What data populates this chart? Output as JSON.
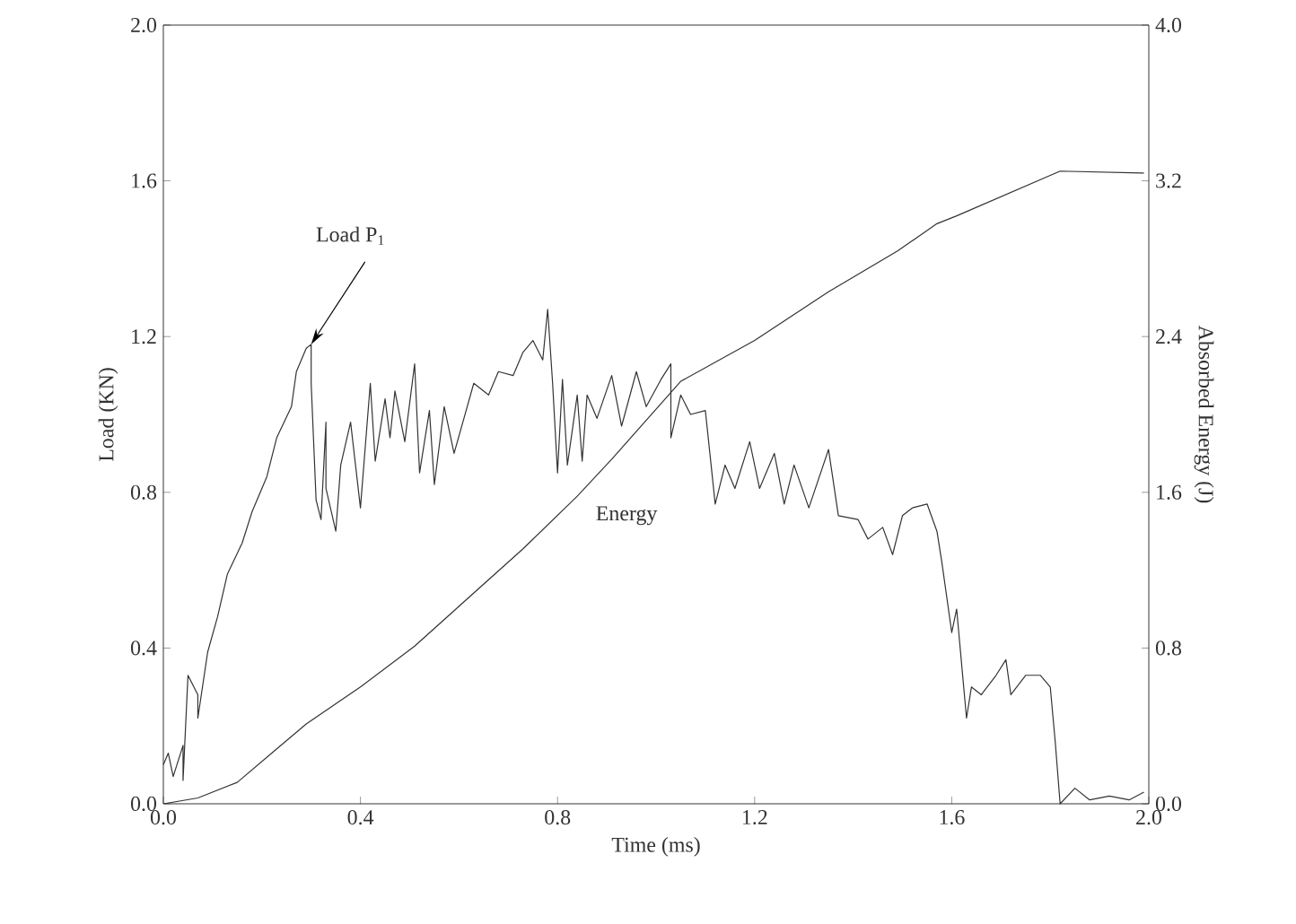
{
  "chart_data": {
    "type": "line",
    "xlabel": "Time (ms)",
    "ylabel": "Load (KN)",
    "y2label": "Absorbed Energy (J)",
    "xlim": [
      0,
      2.0
    ],
    "ylim": [
      0,
      2.0
    ],
    "y2lim": [
      0,
      4.0
    ],
    "xticks": [
      {
        "value": 0,
        "label": "0.0"
      },
      {
        "value": 0.4,
        "label": "0.4"
      },
      {
        "value": 0.8,
        "label": "0.8"
      },
      {
        "value": 1.2,
        "label": "1.2"
      },
      {
        "value": 1.6,
        "label": "1.6"
      },
      {
        "value": 2.0,
        "label": "2.0"
      }
    ],
    "yticks": [
      {
        "value": 0,
        "label": "0.0"
      },
      {
        "value": 0.4,
        "label": "0.4"
      },
      {
        "value": 0.8,
        "label": "0.8"
      },
      {
        "value": 1.2,
        "label": "1.2"
      },
      {
        "value": 1.6,
        "label": "1.6"
      },
      {
        "value": 2.0,
        "label": "2.0"
      }
    ],
    "y2ticks": [
      {
        "value": 0,
        "label": "0.0"
      },
      {
        "value": 0.8,
        "label": "0.8"
      },
      {
        "value": 1.6,
        "label": "1.6"
      },
      {
        "value": 2.4,
        "label": "2.4"
      },
      {
        "value": 3.2,
        "label": "3.2"
      },
      {
        "value": 4.0,
        "label": "4.0"
      }
    ],
    "marker": "none",
    "line_style": "solid",
    "series": [
      {
        "color": "#333333",
        "x": [
          0.0,
          0.01,
          0.02,
          0.04,
          0.04,
          0.05,
          0.07,
          0.07,
          0.09,
          0.11,
          0.13,
          0.16,
          0.18,
          0.21,
          0.23,
          0.26,
          0.27,
          0.29,
          0.3,
          0.3,
          0.31,
          0.32,
          0.33,
          0.33,
          0.35,
          0.36,
          0.38,
          0.4,
          0.42,
          0.43,
          0.45,
          0.46,
          0.47,
          0.49,
          0.51,
          0.52,
          0.54,
          0.55,
          0.57,
          0.59,
          0.61,
          0.63,
          0.66,
          0.68,
          0.71,
          0.73,
          0.75,
          0.77,
          0.78,
          0.79,
          0.8,
          0.81,
          0.82,
          0.84,
          0.85,
          0.86,
          0.88,
          0.91,
          0.93,
          0.96,
          0.98,
          1.01,
          1.03,
          1.03,
          1.05,
          1.07,
          1.1,
          1.12,
          1.14,
          1.16,
          1.19,
          1.21,
          1.24,
          1.26,
          1.28,
          1.31,
          1.35,
          1.37,
          1.41,
          1.43,
          1.46,
          1.48,
          1.5,
          1.52,
          1.55,
          1.57,
          1.58,
          1.6,
          1.61,
          1.63,
          1.64,
          1.66,
          1.69,
          1.71,
          1.72,
          1.75,
          1.78,
          1.8,
          1.81,
          1.82,
          1.85,
          1.88,
          1.92,
          1.96,
          1.99
        ],
        "values": [
          0.1,
          0.13,
          0.07,
          0.15,
          0.06,
          0.33,
          0.28,
          0.22,
          0.39,
          0.48,
          0.59,
          0.67,
          0.75,
          0.84,
          0.94,
          1.02,
          1.11,
          1.17,
          1.18,
          1.08,
          0.78,
          0.73,
          0.98,
          0.81,
          0.7,
          0.87,
          0.98,
          0.76,
          1.08,
          0.88,
          1.04,
          0.94,
          1.06,
          0.93,
          1.13,
          0.85,
          1.01,
          0.82,
          1.02,
          0.9,
          0.99,
          1.08,
          1.05,
          1.11,
          1.1,
          1.16,
          1.19,
          1.14,
          1.27,
          1.08,
          0.85,
          1.09,
          0.87,
          1.05,
          0.88,
          1.05,
          0.99,
          1.1,
          0.97,
          1.11,
          1.02,
          1.09,
          1.13,
          0.94,
          1.05,
          1.0,
          1.01,
          0.77,
          0.87,
          0.81,
          0.93,
          0.81,
          0.9,
          0.77,
          0.87,
          0.76,
          0.91,
          0.74,
          0.73,
          0.68,
          0.71,
          0.64,
          0.74,
          0.76,
          0.77,
          0.7,
          0.62,
          0.44,
          0.5,
          0.22,
          0.3,
          0.28,
          0.33,
          0.37,
          0.28,
          0.33,
          0.33,
          0.3,
          0.16,
          0.0,
          0.04,
          0.01,
          0.02,
          0.01,
          0.03
        ]
      },
      {
        "color": "#333333",
        "axis": "y2",
        "x": [
          0.0,
          0.07,
          0.15,
          0.22,
          0.29,
          0.4,
          0.51,
          0.62,
          0.73,
          0.84,
          0.91,
          1.05,
          1.2,
          1.35,
          1.49,
          1.57,
          1.61,
          1.82,
          1.99
        ],
        "values": [
          0.0,
          0.03,
          0.11,
          0.26,
          0.41,
          0.6,
          0.81,
          1.06,
          1.31,
          1.58,
          1.77,
          2.17,
          2.38,
          2.63,
          2.84,
          2.98,
          3.02,
          3.25,
          3.24
        ]
      }
    ],
    "annotations": [
      {
        "text": "Load  P$_{1}$",
        "x": 0.3,
        "y": 1.18
      },
      "Energy"
    ]
  }
}
